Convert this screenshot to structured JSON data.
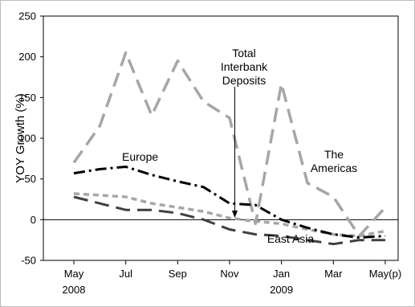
{
  "chart_data": {
    "type": "line",
    "title": "",
    "xlabel": "",
    "ylabel": "YOY Growth (%)",
    "ylim": [
      -50,
      250
    ],
    "yticks": [
      -50,
      0,
      50,
      100,
      150,
      200,
      250
    ],
    "grid": false,
    "x": [
      "2008-05",
      "2008-06",
      "2008-07",
      "2008-08",
      "2008-09",
      "2008-10",
      "2008-11",
      "2008-12",
      "2009-01",
      "2009-02",
      "2009-03",
      "2009-04",
      "2009-05"
    ],
    "xtick_labels": [
      {
        "month": "May",
        "year": "2008"
      },
      {
        "month": "Jul",
        "year": ""
      },
      {
        "month": "Sep",
        "year": ""
      },
      {
        "month": "Nov",
        "year": ""
      },
      {
        "month": "Jan",
        "year": "2009"
      },
      {
        "month": "Mar",
        "year": ""
      },
      {
        "month": "May(p)",
        "year": ""
      }
    ],
    "series": [
      {
        "name": "The Americas",
        "label_lines": [
          "The",
          "Americas"
        ],
        "color": "#a6a6a6",
        "style": "long-dash",
        "values": [
          70,
          115,
          205,
          128,
          195,
          145,
          125,
          -5,
          167,
          45,
          28,
          -20,
          15
        ]
      },
      {
        "name": "Europe",
        "label_lines": [
          "Europe"
        ],
        "color": "#000000",
        "style": "dash-dot",
        "values": [
          57,
          62,
          65,
          55,
          47,
          40,
          20,
          18,
          0,
          -10,
          -18,
          -22,
          -20
        ]
      },
      {
        "name": "Total Interbank Deposits",
        "label_lines": [
          "Total",
          "Interbank",
          "Deposits"
        ],
        "color": "#a6a6a6",
        "style": "short-dash",
        "values": [
          32,
          30,
          28,
          20,
          15,
          10,
          2,
          -2,
          -5,
          -12,
          -18,
          -20,
          -14
        ]
      },
      {
        "name": "East Asia",
        "label_lines": [
          "East Asia"
        ],
        "color": "#404040",
        "style": "long-dash",
        "values": [
          28,
          20,
          12,
          12,
          8,
          0,
          -12,
          -18,
          -20,
          -25,
          -30,
          -25,
          -25
        ]
      }
    ]
  }
}
